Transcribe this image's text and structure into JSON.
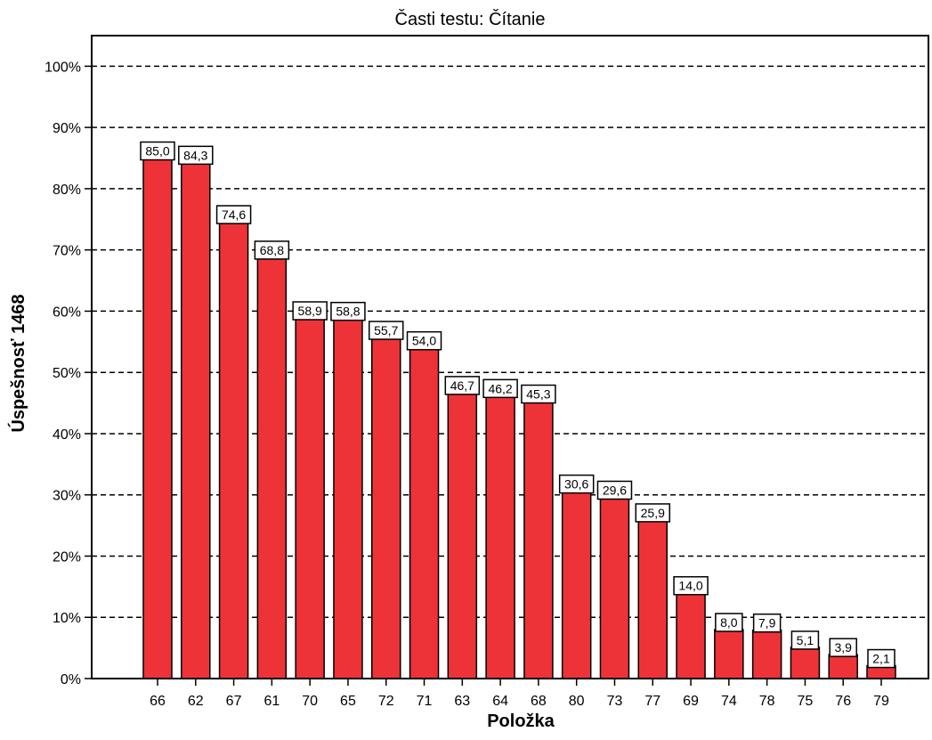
{
  "chart_data": {
    "type": "bar",
    "title": "Časti testu: Čítanie",
    "xlabel": "Položka",
    "ylabel": "Úspešnosť 1468",
    "ylim": [
      0,
      105
    ],
    "yticks": [
      "0%",
      "10%",
      "20%",
      "30%",
      "40%",
      "50%",
      "60%",
      "70%",
      "80%",
      "90%",
      "100%"
    ],
    "grid": "horizontal dashed",
    "bar_color": "#ee3338",
    "categories": [
      "66",
      "62",
      "67",
      "61",
      "70",
      "65",
      "72",
      "71",
      "63",
      "64",
      "68",
      "80",
      "73",
      "77",
      "69",
      "74",
      "78",
      "75",
      "76",
      "79"
    ],
    "values": [
      85.0,
      84.3,
      74.6,
      68.8,
      58.9,
      58.8,
      55.7,
      54.0,
      46.7,
      46.2,
      45.3,
      30.6,
      29.6,
      25.9,
      14.0,
      8.0,
      7.9,
      5.1,
      3.9,
      2.1
    ],
    "value_labels": [
      "85,0",
      "84,3",
      "74,6",
      "68,8",
      "58,9",
      "58,8",
      "55,7",
      "54,0",
      "46,7",
      "46,2",
      "45,3",
      "30,6",
      "29,6",
      "25,9",
      "14,0",
      "8,0",
      "7,9",
      "5,1",
      "3,9",
      "2,1"
    ]
  }
}
